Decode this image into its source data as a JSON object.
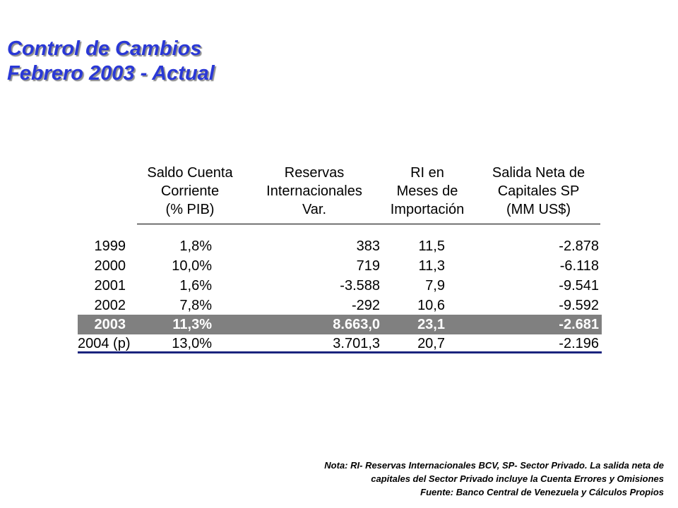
{
  "title": {
    "line1": "Control de Cambios",
    "line2": "Febrero 2003 - Actual"
  },
  "table": {
    "headers": [
      {
        "l1": "Saldo Cuenta",
        "l2": "Corriente",
        "l3": "(% PIB)"
      },
      {
        "l1": "Reservas",
        "l2": "Internacionales",
        "l3": "Var."
      },
      {
        "l1": "RI en",
        "l2": "Meses de",
        "l3": "Importación"
      },
      {
        "l1": "Salida Neta de",
        "l2": "Capitales SP",
        "l3": "(MM US$)"
      }
    ],
    "rows": [
      {
        "year": "1999",
        "saldo": "1,8%",
        "reservas": "383",
        "ri": "11,5",
        "salida": "-2.878"
      },
      {
        "year": "2000",
        "saldo": "10,0%",
        "reservas": "719",
        "ri": "11,3",
        "salida": "-6.118"
      },
      {
        "year": "2001",
        "saldo": "1,6%",
        "reservas": "-3.588",
        "ri": "7,9",
        "salida": "-9.541"
      },
      {
        "year": "2002",
        "saldo": "7,8%",
        "reservas": "-292",
        "ri": "10,6",
        "salida": "-9.592"
      },
      {
        "year": "2003",
        "saldo": "11,3%",
        "reservas": "8.663,0",
        "ri": "23,1",
        "salida": "-2.681"
      },
      {
        "year": "2004 (p)",
        "saldo": "13,0%",
        "reservas": "3.701,3",
        "ri": "20,7",
        "salida": "-2.196"
      }
    ]
  },
  "note": {
    "line1": "Nota: RI- Reservas Internacionales BCV, SP- Sector Privado.  La salida neta de",
    "line2": "capitales del Sector Privado incluye la Cuenta Errores y Omisiones",
    "line3": "Fuente: Banco Central de Venezuela y Cálculos Propios"
  },
  "colors": {
    "title": "#2a38d6",
    "highlight_row": "#808080",
    "bottom_rule": "#1a237e"
  }
}
